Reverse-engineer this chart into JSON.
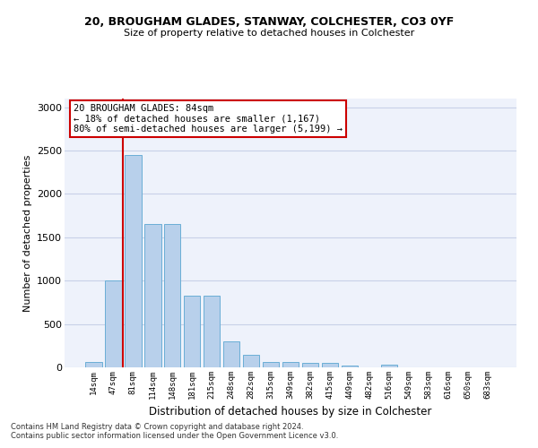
{
  "title1": "20, BROUGHAM GLADES, STANWAY, COLCHESTER, CO3 0YF",
  "title2": "Size of property relative to detached houses in Colchester",
  "xlabel": "Distribution of detached houses by size in Colchester",
  "ylabel": "Number of detached properties",
  "categories": [
    "14sqm",
    "47sqm",
    "81sqm",
    "114sqm",
    "148sqm",
    "181sqm",
    "215sqm",
    "248sqm",
    "282sqm",
    "315sqm",
    "349sqm",
    "382sqm",
    "415sqm",
    "449sqm",
    "482sqm",
    "516sqm",
    "549sqm",
    "583sqm",
    "616sqm",
    "650sqm",
    "683sqm"
  ],
  "values": [
    60,
    1000,
    2450,
    1650,
    1650,
    830,
    830,
    300,
    145,
    60,
    60,
    55,
    50,
    20,
    0,
    35,
    0,
    0,
    0,
    0,
    0
  ],
  "bar_color": "#b8d0eb",
  "bar_edge_color": "#6aaed6",
  "vline_color": "#cc0000",
  "annotation_text": "20 BROUGHAM GLADES: 84sqm\n← 18% of detached houses are smaller (1,167)\n80% of semi-detached houses are larger (5,199) →",
  "annotation_box_color": "#ffffff",
  "annotation_box_edge": "#cc0000",
  "ylim": [
    0,
    3100
  ],
  "yticks": [
    0,
    500,
    1000,
    1500,
    2000,
    2500,
    3000
  ],
  "footer1": "Contains HM Land Registry data © Crown copyright and database right 2024.",
  "footer2": "Contains public sector information licensed under the Open Government Licence v3.0.",
  "bg_color": "#eef2fb",
  "grid_color": "#c8d0e8",
  "title_fontsize": 9,
  "subtitle_fontsize": 8
}
